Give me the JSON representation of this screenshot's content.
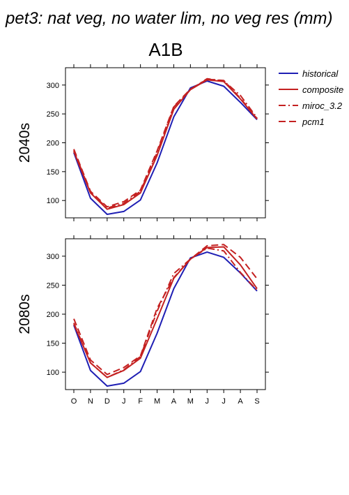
{
  "figure": {
    "title": "pet3: nat veg, no water lim, no veg res (mm)",
    "subtitle": "A1B"
  },
  "legend": [
    {
      "label": "historical",
      "color": "#1f1fb4",
      "dash": "solid"
    },
    {
      "label": "composite",
      "color": "#c42121",
      "dash": "solid"
    },
    {
      "label": "miroc_3.2",
      "color": "#c42121",
      "dash": "dashdot"
    },
    {
      "label": "pcm1",
      "color": "#c42121",
      "dash": "dash"
    }
  ],
  "chart_data": [
    {
      "type": "line",
      "panel_label": "2040s",
      "categories": [
        "O",
        "N",
        "D",
        "J",
        "F",
        "M",
        "A",
        "M",
        "J",
        "J",
        "A",
        "S"
      ],
      "yticks": [
        100,
        150,
        200,
        250,
        300
      ],
      "ylim": [
        70,
        330
      ],
      "grid": false,
      "legend_position": "right",
      "series": [
        {
          "name": "historical",
          "values": [
            183,
            104,
            76,
            81,
            101,
            165,
            245,
            295,
            307,
            298,
            270,
            240
          ]
        },
        {
          "name": "composite",
          "values": [
            185,
            113,
            85,
            93,
            113,
            178,
            258,
            292,
            309,
            306,
            276,
            241
          ]
        },
        {
          "name": "miroc_3.2",
          "values": [
            187,
            114,
            87,
            95,
            116,
            183,
            262,
            292,
            311,
            307,
            282,
            243
          ]
        },
        {
          "name": "pcm1",
          "values": [
            189,
            116,
            89,
            98,
            118,
            186,
            263,
            293,
            310,
            308,
            277,
            242
          ]
        }
      ]
    },
    {
      "type": "line",
      "panel_label": "2080s",
      "categories": [
        "O",
        "N",
        "D",
        "J",
        "F",
        "M",
        "A",
        "M",
        "J",
        "J",
        "A",
        "S"
      ],
      "yticks": [
        100,
        150,
        200,
        250,
        300
      ],
      "ylim": [
        70,
        330
      ],
      "grid": false,
      "legend_position": "right",
      "series": [
        {
          "name": "historical",
          "values": [
            181,
            103,
            76,
            81,
            101,
            167,
            244,
            297,
            307,
            298,
            271,
            240
          ]
        },
        {
          "name": "composite",
          "values": [
            183,
            116,
            91,
            103,
            124,
            192,
            262,
            295,
            315,
            316,
            285,
            244
          ]
        },
        {
          "name": "miroc_3.2",
          "values": [
            185,
            116,
            91,
            104,
            127,
            205,
            270,
            295,
            314,
            309,
            272,
            241
          ]
        },
        {
          "name": "pcm1",
          "values": [
            192,
            121,
            96,
            108,
            128,
            210,
            263,
            295,
            318,
            320,
            298,
            261
          ]
        }
      ]
    }
  ]
}
